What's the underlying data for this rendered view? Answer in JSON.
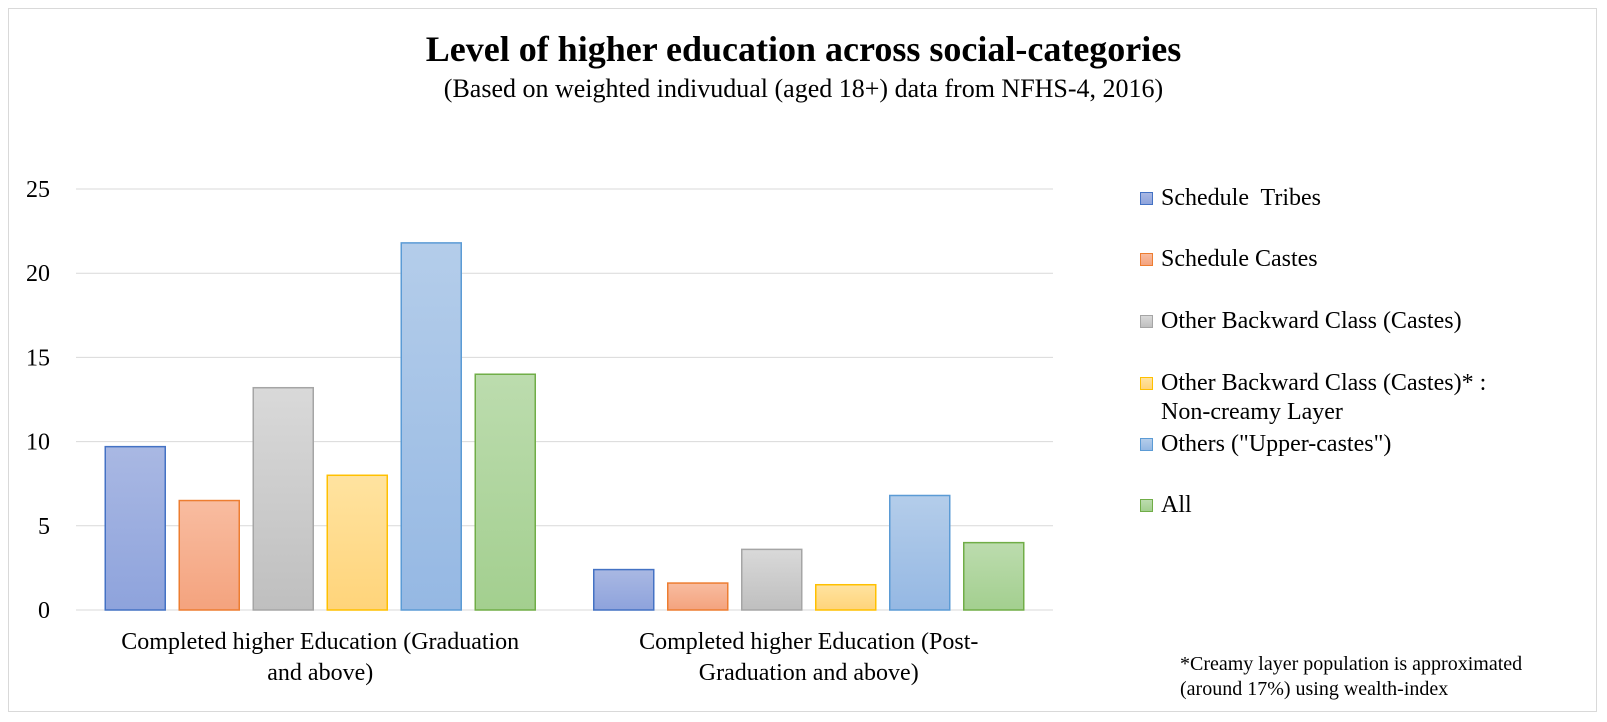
{
  "chart_data": {
    "type": "bar",
    "title": "Level of higher education across social-categories",
    "subtitle": "(Based on weighted indivudual (aged 18+) data from NFHS-4, 2016)",
    "categories": [
      "Completed higher Education (Graduation and above)",
      "Completed higher Education (Post-Graduation and above)"
    ],
    "category_lines": [
      [
        "Completed higher Education (Graduation",
        "and above)"
      ],
      [
        "Completed higher Education (Post-",
        "Graduation and above)"
      ]
    ],
    "series": [
      {
        "name": "Schedule  Tribes",
        "values": [
          9.7,
          2.4
        ],
        "fill_top": "#a9b8e3",
        "fill_bottom": "#8ea3dc",
        "stroke": "#4472c4"
      },
      {
        "name": "Schedule Castes",
        "values": [
          6.5,
          1.6
        ],
        "fill_top": "#f8bca0",
        "fill_bottom": "#f4a37e",
        "stroke": "#ed7d31"
      },
      {
        "name": "Other Backward Class (Castes)",
        "values": [
          13.2,
          3.6
        ],
        "fill_top": "#d9d9d9",
        "fill_bottom": "#bfbfbf",
        "stroke": "#a5a5a5"
      },
      {
        "name": "Other Backward Class (Castes)* :\nNon-creamy Layer",
        "values": [
          8.0,
          1.5
        ],
        "fill_top": "#ffe3a0",
        "fill_bottom": "#ffd47a",
        "stroke": "#ffc000"
      },
      {
        "name": "Others (\"Upper-castes\")",
        "values": [
          21.8,
          6.8
        ],
        "fill_top": "#b4cdea",
        "fill_bottom": "#95b8e3",
        "stroke": "#5b9bd5"
      },
      {
        "name": "All",
        "values": [
          14.0,
          4.0
        ],
        "fill_top": "#bcdcae",
        "fill_bottom": "#a3cf8f",
        "stroke": "#70ad47"
      }
    ],
    "ylim": [
      0,
      25
    ],
    "yticks": [
      "0",
      "5",
      "10",
      "15",
      "20",
      "25"
    ],
    "xlabel": "",
    "ylabel": "",
    "grid": true,
    "legend_position": "right"
  },
  "footnote": {
    "line1": "*Creamy layer population is approximated",
    "line2": "(around 17%) using wealth-index"
  }
}
